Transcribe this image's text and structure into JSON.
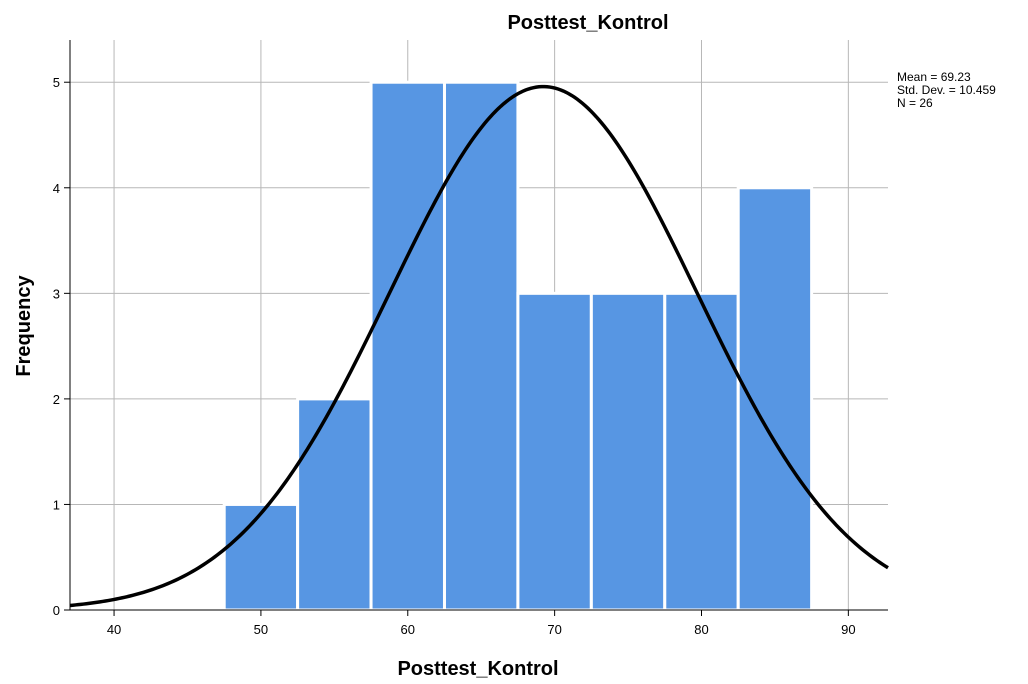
{
  "chart_data": {
    "type": "bar",
    "subtype": "histogram",
    "title": "Posttest_Kontrol",
    "xlabel": "Posttest_Kontrol",
    "ylabel": "Frequency",
    "bins": [
      {
        "start": 47.5,
        "end": 52.5,
        "count": 1
      },
      {
        "start": 52.5,
        "end": 57.5,
        "count": 2
      },
      {
        "start": 57.5,
        "end": 62.5,
        "count": 5
      },
      {
        "start": 62.5,
        "end": 67.5,
        "count": 5
      },
      {
        "start": 67.5,
        "end": 72.5,
        "count": 3
      },
      {
        "start": 72.5,
        "end": 77.5,
        "count": 3
      },
      {
        "start": 77.5,
        "end": 82.5,
        "count": 3
      },
      {
        "start": 82.5,
        "end": 87.5,
        "count": 4
      }
    ],
    "xlim": [
      37,
      92.7
    ],
    "ylim": [
      0,
      5.4
    ],
    "xticks": [
      "40",
      "50",
      "60",
      "70",
      "80",
      "90"
    ],
    "yticks": [
      "0",
      "1",
      "2",
      "3",
      "4",
      "5"
    ],
    "grid": true,
    "bar_color": "#5796E3",
    "curve_color": "#000000",
    "normal_curve": {
      "mean": 69.23,
      "sd": 10.459,
      "n": 26,
      "bin_width": 5
    },
    "stats": {
      "mean": "Mean = 69.23",
      "std_dev": "Std. Dev. = 10.459",
      "n": "N = 26"
    }
  }
}
